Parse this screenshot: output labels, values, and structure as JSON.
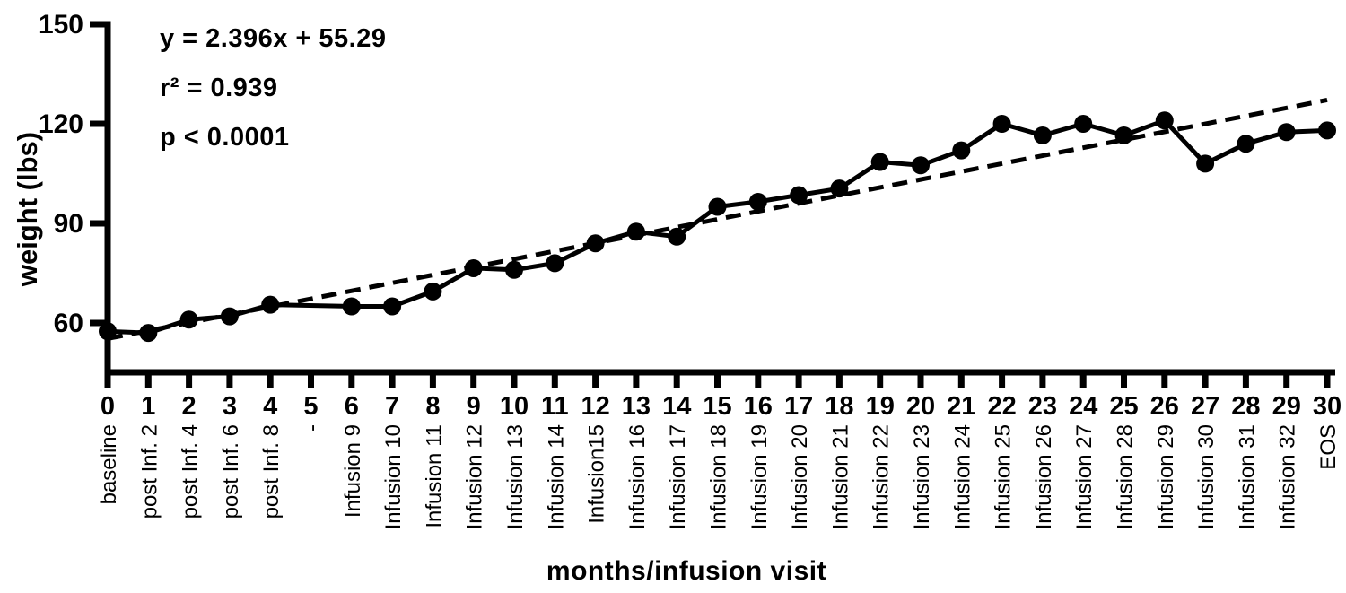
{
  "chart_data": {
    "type": "scatter",
    "title": "",
    "xlabel": "months/infusion visit",
    "ylabel": "weight (lbs)",
    "stats_lines": [
      "y = 2.396x + 55.29",
      "r² = 0.939",
      "p < 0.0001"
    ],
    "y_ticks": [
      60,
      90,
      120,
      150
    ],
    "ylim": [
      45,
      150
    ],
    "xlim": [
      0,
      30
    ],
    "x_ticks": [
      0,
      1,
      2,
      3,
      4,
      5,
      6,
      7,
      8,
      9,
      10,
      11,
      12,
      13,
      14,
      15,
      16,
      17,
      18,
      19,
      20,
      21,
      22,
      23,
      24,
      25,
      26,
      27,
      28,
      29,
      30
    ],
    "x_tick_labels": [
      "0",
      "1",
      "2",
      "3",
      "4",
      "5",
      "6",
      "7",
      "8",
      "9",
      "10",
      "11",
      "12",
      "13",
      "14",
      "15",
      "16",
      "17",
      "18",
      "19",
      "20",
      "21",
      "22",
      "23",
      "24",
      "25",
      "26",
      "27",
      "28",
      "29",
      "30"
    ],
    "x_visit_labels": [
      "baseline",
      "post Inf. 2",
      "post Inf. 4",
      "post Inf. 6",
      "post Inf. 8",
      "-",
      "Infusion 9",
      "Infusion 10",
      "Infusion 11",
      "Infusion 12",
      "Infusion 13",
      "Infusion 14",
      "Infusion15",
      "Infusion 16",
      "Infusion 17",
      "Infusion 18",
      "Infusion 19",
      "Infusion 20",
      "Infusion 21",
      "Infusion 22",
      "Infusion 23",
      "Infusion 24",
      "Infusion 25",
      "Infusion 26",
      "Infusion 27",
      "Infusion 28",
      "Infusion 29",
      "Infusion 30",
      "Infusion 31",
      "Infusion 32",
      "EOS"
    ],
    "series": [
      {
        "name": "weight",
        "marker": "circle",
        "line": "solid",
        "points": [
          [
            0,
            57.5
          ],
          [
            1,
            57
          ],
          [
            2,
            61
          ],
          [
            3,
            62
          ],
          [
            4,
            65.5
          ],
          [
            6,
            65
          ],
          [
            7,
            65
          ],
          [
            8,
            69.5
          ],
          [
            9,
            76.5
          ],
          [
            10,
            76
          ],
          [
            11,
            78
          ],
          [
            12,
            84
          ],
          [
            13,
            87.5
          ],
          [
            14,
            86
          ],
          [
            15,
            95
          ],
          [
            16,
            96.5
          ],
          [
            17,
            98.5
          ],
          [
            18,
            100.5
          ],
          [
            19,
            108.5
          ],
          [
            20,
            107.5
          ],
          [
            21,
            112
          ],
          [
            22,
            120
          ],
          [
            23,
            116.5
          ],
          [
            24,
            120
          ],
          [
            25,
            116.5
          ],
          [
            26,
            121
          ],
          [
            27,
            108
          ],
          [
            28,
            114
          ],
          [
            29,
            117.5
          ],
          [
            30,
            118
          ]
        ]
      }
    ],
    "regression": {
      "slope": 2.396,
      "intercept": 55.29,
      "x_start": 0,
      "x_end": 30,
      "style": "dashed"
    },
    "legend": "none",
    "grid": false,
    "colors": {
      "data": "#000000",
      "regression": "#000000",
      "axis": "#000000",
      "background": "#ffffff"
    }
  }
}
